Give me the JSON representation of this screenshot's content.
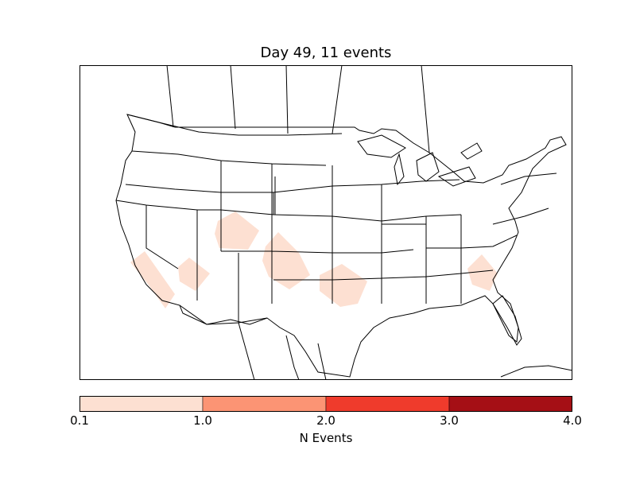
{
  "title": "Day 49, 11 events",
  "map": {
    "region": "contiguous United States with parts of Canada and Mexico",
    "projection": "Lambert conformal",
    "event_areas": [
      {
        "name": "southern California / Nevada",
        "bin": "0.1-1.0"
      },
      {
        "name": "Arizona",
        "bin": "0.1-1.0"
      },
      {
        "name": "Utah / Colorado",
        "bin": "0.1-1.0"
      },
      {
        "name": "Oklahoma panhandle / Texas",
        "bin": "0.1-1.0"
      },
      {
        "name": "Oklahoma / Texas",
        "bin": "0.1-1.0"
      },
      {
        "name": "Georgia / South Carolina",
        "bin": "0.1-1.0"
      }
    ]
  },
  "colorbar": {
    "label": "N Events",
    "ticks": [
      "0.1",
      "1.0",
      "2.0",
      "3.0",
      "4.0"
    ],
    "bins": [
      {
        "from": 0.1,
        "to": 1.0,
        "color": "#fde0d2"
      },
      {
        "from": 1.0,
        "to": 2.0,
        "color": "#fc9474"
      },
      {
        "from": 2.0,
        "to": 3.0,
        "color": "#ef3b2c"
      },
      {
        "from": 3.0,
        "to": 4.0,
        "color": "#a50f15"
      }
    ]
  },
  "colors": {
    "event_fill": "#fde0d2",
    "boundary": "#000000"
  }
}
